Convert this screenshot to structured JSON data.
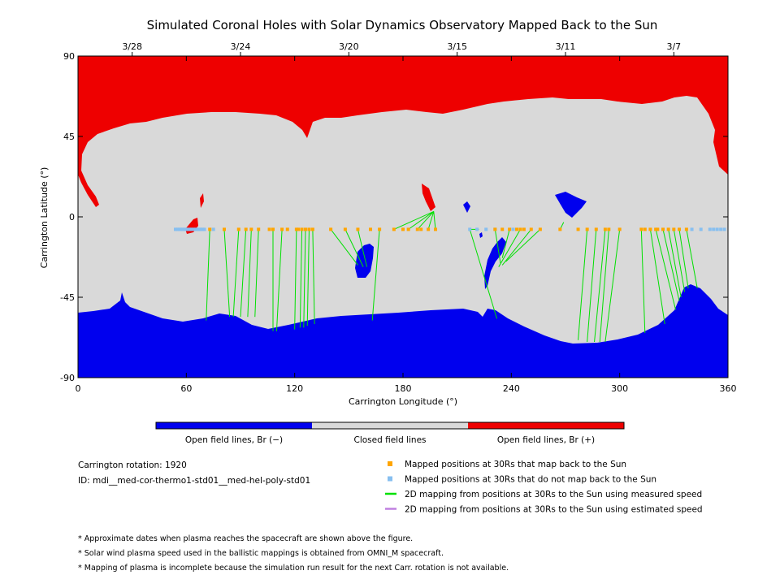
{
  "chart_data": {
    "type": "scatter",
    "title": "Simulated Coronal Holes with Solar Dynamics Observatory Mapped Back to the Sun",
    "xlabel": "Carrington Longitude (°)",
    "ylabel": "Carrington Latitude (°)",
    "xlim": [
      0,
      360
    ],
    "ylim": [
      -90,
      90
    ],
    "x_ticks": [
      "0",
      "60",
      "120",
      "180",
      "240",
      "300",
      "360"
    ],
    "y_ticks": [
      "90",
      "45",
      "0",
      "-45",
      "-90"
    ],
    "date_ticks": [
      {
        "label": "3/28",
        "lon": 30
      },
      {
        "label": "3/24",
        "lon": 90
      },
      {
        "label": "3/20",
        "lon": 150
      },
      {
        "label": "3/15",
        "lon": 210
      },
      {
        "label": "3/11",
        "lon": 270
      },
      {
        "label": "3/7",
        "lon": 330
      }
    ],
    "colors": {
      "open_negative": "#0000ee",
      "closed": "#d9d9d9",
      "open_positive": "#ee0000",
      "mapped": "#ffa500",
      "not_mapped": "#87bff0",
      "measured": "#00e000",
      "estimated": "#c080e0"
    },
    "colorbar": [
      {
        "key": "neg",
        "label": "Open field lines, Br (−)"
      },
      {
        "key": "closed",
        "label": "Closed field lines"
      },
      {
        "key": "pos",
        "label": "Open field lines, Br (+)"
      }
    ],
    "mapped_lon": [
      73,
      81,
      89,
      93,
      96,
      100,
      106,
      108,
      113,
      116,
      121,
      122,
      124,
      126,
      128,
      130,
      140,
      148,
      155,
      162,
      167,
      175,
      180,
      183,
      188,
      190,
      194,
      198,
      231,
      235,
      239,
      243,
      245,
      247,
      251,
      256,
      267,
      277,
      282,
      287,
      292,
      294,
      300,
      312,
      314,
      317,
      320,
      321,
      324,
      327,
      330,
      333,
      337
    ],
    "not_mapped_lon": [
      54,
      55,
      56,
      57,
      58,
      59,
      60,
      61,
      62,
      63,
      64,
      65,
      66,
      67,
      68,
      69,
      70,
      75,
      217,
      221,
      226,
      231,
      241,
      340,
      345,
      350,
      352,
      354,
      356,
      358
    ],
    "mapping_lines": [
      {
        "from": [
          73,
          -7
        ],
        "to": [
          71,
          -58
        ]
      },
      {
        "from": [
          81,
          -7
        ],
        "to": [
          84,
          -56
        ]
      },
      {
        "from": [
          89,
          -7
        ],
        "to": [
          86,
          -56
        ]
      },
      {
        "from": [
          93,
          -7
        ],
        "to": [
          90,
          -56
        ]
      },
      {
        "from": [
          96,
          -7
        ],
        "to": [
          94,
          -56
        ]
      },
      {
        "from": [
          100,
          -7
        ],
        "to": [
          98,
          -56
        ]
      },
      {
        "from": [
          108,
          -7
        ],
        "to": [
          108,
          -64
        ]
      },
      {
        "from": [
          113,
          -7
        ],
        "to": [
          110,
          -64
        ]
      },
      {
        "from": [
          121,
          -7
        ],
        "to": [
          120,
          -63
        ]
      },
      {
        "from": [
          124,
          -7
        ],
        "to": [
          123,
          -62
        ]
      },
      {
        "from": [
          126,
          -7
        ],
        "to": [
          125,
          -62
        ]
      },
      {
        "from": [
          128,
          -7
        ],
        "to": [
          127,
          -61
        ]
      },
      {
        "from": [
          130,
          -7
        ],
        "to": [
          131,
          -60
        ]
      },
      {
        "from": [
          140,
          -7
        ],
        "to": [
          155,
          -27
        ]
      },
      {
        "from": [
          148,
          -7
        ],
        "to": [
          158,
          -28
        ]
      },
      {
        "from": [
          155,
          -7
        ],
        "to": [
          160,
          -28
        ]
      },
      {
        "from": [
          167,
          -7
        ],
        "to": [
          163,
          -58
        ]
      },
      {
        "from": [
          175,
          -7
        ],
        "to": [
          197,
          3
        ]
      },
      {
        "from": [
          183,
          -7
        ],
        "to": [
          197,
          3
        ]
      },
      {
        "from": [
          188,
          -7
        ],
        "to": [
          197,
          3
        ]
      },
      {
        "from": [
          194,
          -7
        ],
        "to": [
          197,
          3
        ]
      },
      {
        "from": [
          198,
          -7
        ],
        "to": [
          197,
          3
        ]
      },
      {
        "from": [
          217,
          -7
        ],
        "to": [
          222,
          -7
        ]
      },
      {
        "from": [
          217,
          -7
        ],
        "to": [
          232,
          -57
        ]
      },
      {
        "from": [
          231,
          -7
        ],
        "to": [
          234,
          -26
        ]
      },
      {
        "from": [
          239,
          -7
        ],
        "to": [
          235,
          -23
        ]
      },
      {
        "from": [
          245,
          -7
        ],
        "to": [
          233,
          -28
        ]
      },
      {
        "from": [
          251,
          -7
        ],
        "to": [
          235,
          -27
        ]
      },
      {
        "from": [
          256,
          -7
        ],
        "to": [
          237,
          -25
        ]
      },
      {
        "from": [
          267,
          -7
        ],
        "to": [
          269,
          -3
        ]
      },
      {
        "from": [
          282,
          -7
        ],
        "to": [
          277,
          -69
        ]
      },
      {
        "from": [
          287,
          -7
        ],
        "to": [
          282,
          -70
        ]
      },
      {
        "from": [
          292,
          -7
        ],
        "to": [
          286,
          -70
        ]
      },
      {
        "from": [
          294,
          -7
        ],
        "to": [
          289,
          -70
        ]
      },
      {
        "from": [
          300,
          -7
        ],
        "to": [
          292,
          -70
        ]
      },
      {
        "from": [
          312,
          -7
        ],
        "to": [
          314,
          -65
        ]
      },
      {
        "from": [
          317,
          -7
        ],
        "to": [
          325,
          -60
        ]
      },
      {
        "from": [
          320,
          -7
        ],
        "to": [
          331,
          -52
        ]
      },
      {
        "from": [
          324,
          -7
        ],
        "to": [
          333,
          -47
        ]
      },
      {
        "from": [
          327,
          -7
        ],
        "to": [
          334,
          -45
        ]
      },
      {
        "from": [
          330,
          -7
        ],
        "to": [
          336,
          -42
        ]
      },
      {
        "from": [
          333,
          -7
        ],
        "to": [
          338,
          -40
        ]
      },
      {
        "from": [
          337,
          -7
        ],
        "to": [
          343,
          -40
        ]
      }
    ]
  },
  "legend": {
    "rotation": "Carrington rotation: 1920",
    "id": "ID: mdi__med-cor-thermo1-std01__med-hel-poly-std01",
    "items": [
      {
        "key": "mapped",
        "kind": "square",
        "label": "Mapped positions at 30Rs that map back to the Sun"
      },
      {
        "key": "not_mapped",
        "kind": "square",
        "label": "Mapped positions at 30Rs that do not map back to the Sun"
      },
      {
        "key": "measured",
        "kind": "line",
        "label": "2D mapping from positions at 30Rs to the Sun using measured speed"
      },
      {
        "key": "estimated",
        "kind": "line",
        "label": "2D mapping from positions at 30Rs to the Sun using estimated speed"
      }
    ]
  },
  "notes": [
    "* Approximate dates when plasma reaches the spacecraft are shown above the figure.",
    "* Solar wind plasma speed used in the ballistic mappings is obtained from OMNI_M spacecraft.",
    "* Mapping of plasma is incomplete because the simulation run result for the next Carr. rotation is not available."
  ]
}
